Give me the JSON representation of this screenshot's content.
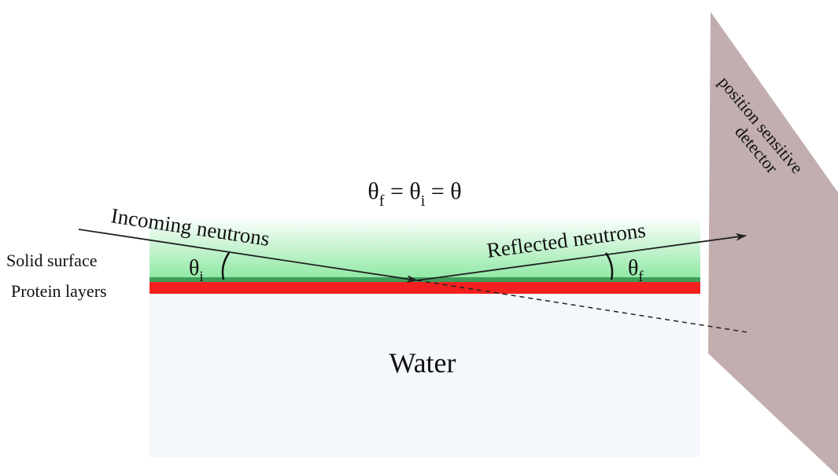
{
  "equation": {
    "parts": [
      "θ",
      "f",
      " = θ",
      "i",
      " = θ"
    ]
  },
  "labels": {
    "incoming": "Incoming neutrons",
    "reflected": "Reflected neutrons",
    "solid_surface": "Solid surface",
    "protein_layers": "Protein layers",
    "water": "Water"
  },
  "angles": {
    "incident": {
      "symbol": "θ",
      "subscript": "i"
    },
    "final": {
      "symbol": "θ",
      "subscript": "f"
    }
  },
  "detector": {
    "lines": [
      "position sensitive",
      "detector"
    ]
  }
}
